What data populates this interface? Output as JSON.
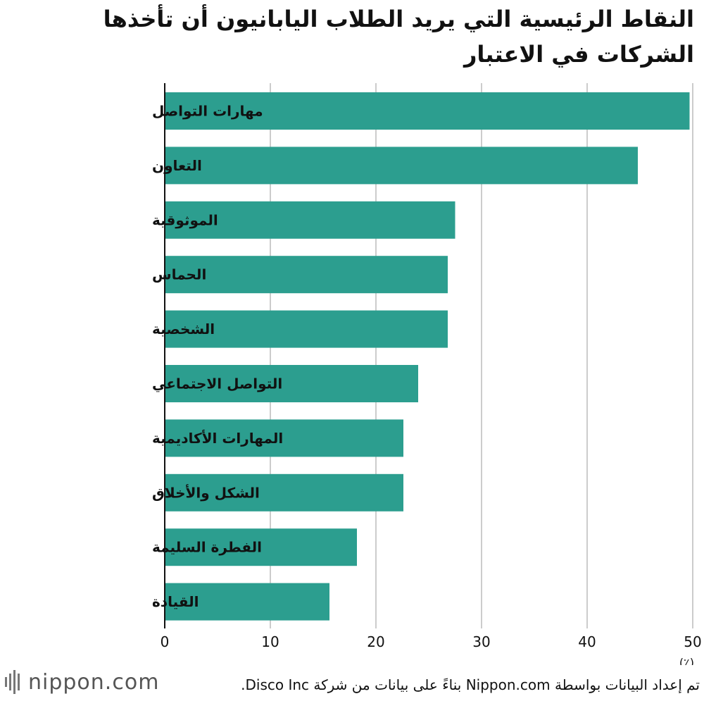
{
  "chart_data": {
    "type": "bar",
    "orientation": "horizontal",
    "title": "النقاط الرئيسية التي يريد الطلاب اليابانيون أن تأخذها الشركات في الاعتبار",
    "categories": [
      "مهارات التواصل",
      "التعاون",
      "الموثوقية",
      "الحماس",
      "الشخصية",
      "التواصل الاجتماعي",
      "المهارات الأكاديمية",
      "الشكل والأخلاق",
      "الفطرة السليمة",
      "القيادة"
    ],
    "values": [
      49.7,
      44.8,
      27.5,
      26.8,
      26.8,
      24.0,
      22.6,
      22.6,
      18.2,
      15.6
    ],
    "xlim": [
      0,
      50
    ],
    "xticks": [
      "0",
      "10",
      "20",
      "30",
      "40",
      "50"
    ],
    "unit": "(٪)",
    "grid": true,
    "bar_color": "#2c9e8f",
    "grid_color": "#cccccc",
    "axis_color": "#111111"
  },
  "footer": {
    "logo_text": "nippon.com",
    "logo_icon": "nippon-logo-icon",
    "source": "تم إعداد البيانات بواسطة Nippon.com بناءً على بيانات من شركة Disco Inc."
  }
}
